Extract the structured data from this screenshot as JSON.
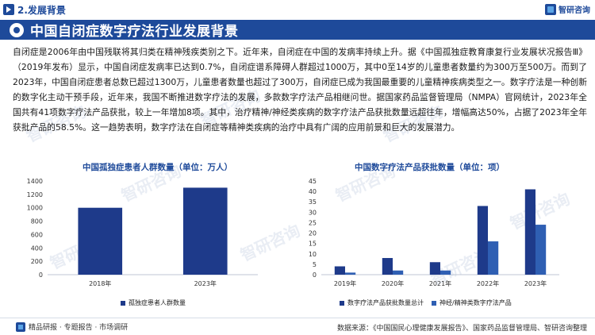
{
  "header": {
    "section_label": "2.发展背景",
    "brand_name": "智研咨询",
    "page_title": "中国自闭症数字疗法行业发展背景"
  },
  "body": {
    "paragraph": "自闭症是2006年由中国残联将其归类在精神残疾类别之下。近年来，自闭症在中国的发病率持续上升。据《中国孤独症教育康复行业发展状况报告Ⅲ》（2019年发布）显示，中国自闭症发病率已达到0.7%，自闭症谱系障碍人群超过1000万，其中0至14岁的儿童患者数量约为300万至500万。而到了2023年，中国自闭症患者总数已超过1300万，儿童患者数量也超过了300万，自闭症已成为我国最重要的儿童精神疾病类型之一。数字疗法是一种创新的数字化主动干预手段，近年来，我国不断推进数字疗法的发展，多款数字疗法产品相继问世。据国家药品监督管理局（NMPA）官网统计，2023年全国共有41项数字疗法产品获批，较上一年增加8项。其中，治疗精神/神经类疾病的数字疗法产品获批数量远超往年，增幅高达50%，占据了2023年全年获批产品的58.5%。这一趋势表明，数字疗法在自闭症等精神类疾病的治疗中具有广阔的应用前景和巨大的发展潜力。"
  },
  "watermark": "智研咨询",
  "chart_data": [
    {
      "type": "bar",
      "title": "中国孤独症患者人群数量（单位：万人）",
      "categories": [
        "2018年",
        "2023年"
      ],
      "series": [
        {
          "name": "孤独症患者人群数量",
          "values": [
            1000,
            1300
          ]
        }
      ],
      "ylim": [
        0,
        1400
      ],
      "yticks": [
        0,
        200,
        400,
        600,
        800,
        1000,
        1200,
        1400
      ],
      "colors": [
        "#1e3a8a"
      ],
      "legend": "bottom"
    },
    {
      "type": "bar",
      "title": "中国数字疗法产品获批数量（单位：项）",
      "categories": [
        "2019年",
        "2020年",
        "2021年",
        "2022年",
        "2023年"
      ],
      "series": [
        {
          "name": "数字疗法产品获批数量总计",
          "values": [
            4,
            8,
            6,
            33,
            41
          ]
        },
        {
          "name": "神经/精神类数字疗法产品",
          "values": [
            1,
            2,
            2,
            16,
            24
          ]
        }
      ],
      "ylim": [
        0,
        45
      ],
      "yticks": [
        0,
        5,
        10,
        15,
        20,
        25,
        30,
        35,
        40,
        45
      ],
      "colors": [
        "#1e3a8a",
        "#2f5fb3"
      ],
      "legend": "bottom"
    }
  ],
  "footer": {
    "left": "精品研报 · 专题报告 · 市场调研",
    "right": "数据来源：《中国国民心理健康发展报告》、国家药品监督管理局、智研咨询整理"
  }
}
